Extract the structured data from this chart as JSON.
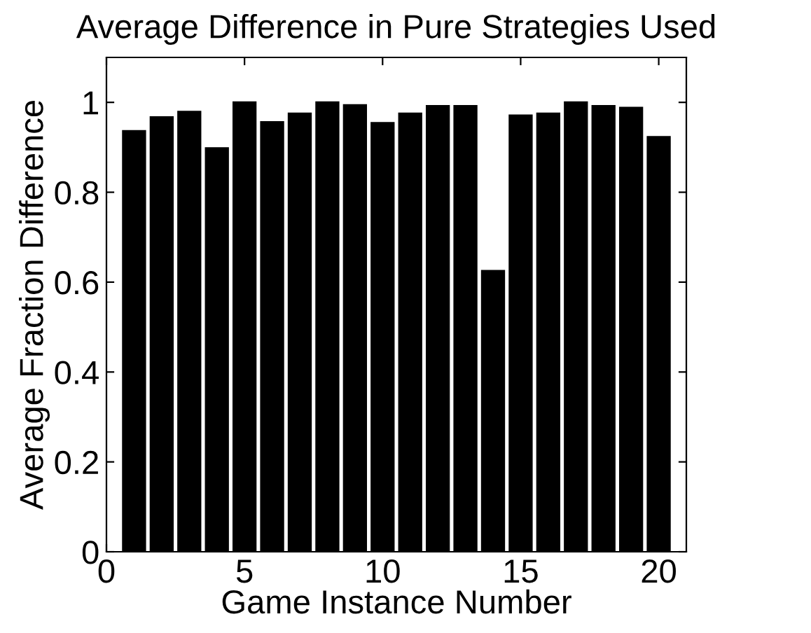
{
  "chart_data": {
    "type": "bar",
    "title": "Average Difference in Pure Strategies Used",
    "xlabel": "Game Instance Number",
    "ylabel": "Average Fraction Difference",
    "x": [
      1,
      2,
      3,
      4,
      5,
      6,
      7,
      8,
      9,
      10,
      11,
      12,
      13,
      14,
      15,
      16,
      17,
      18,
      19,
      20
    ],
    "values": [
      0.936,
      0.967,
      0.979,
      0.898,
      1.0,
      0.956,
      0.975,
      1.0,
      0.994,
      0.954,
      0.975,
      0.992,
      0.992,
      0.625,
      0.971,
      0.975,
      1.0,
      0.992,
      0.988,
      0.923
    ],
    "color": "#000000",
    "xlim": [
      0,
      21
    ],
    "xticks": [
      0,
      5,
      10,
      15,
      20
    ],
    "ylim": [
      0,
      1.1
    ],
    "yticks": [
      0,
      0.2,
      0.4,
      0.6,
      0.8,
      1
    ],
    "grid": false
  }
}
